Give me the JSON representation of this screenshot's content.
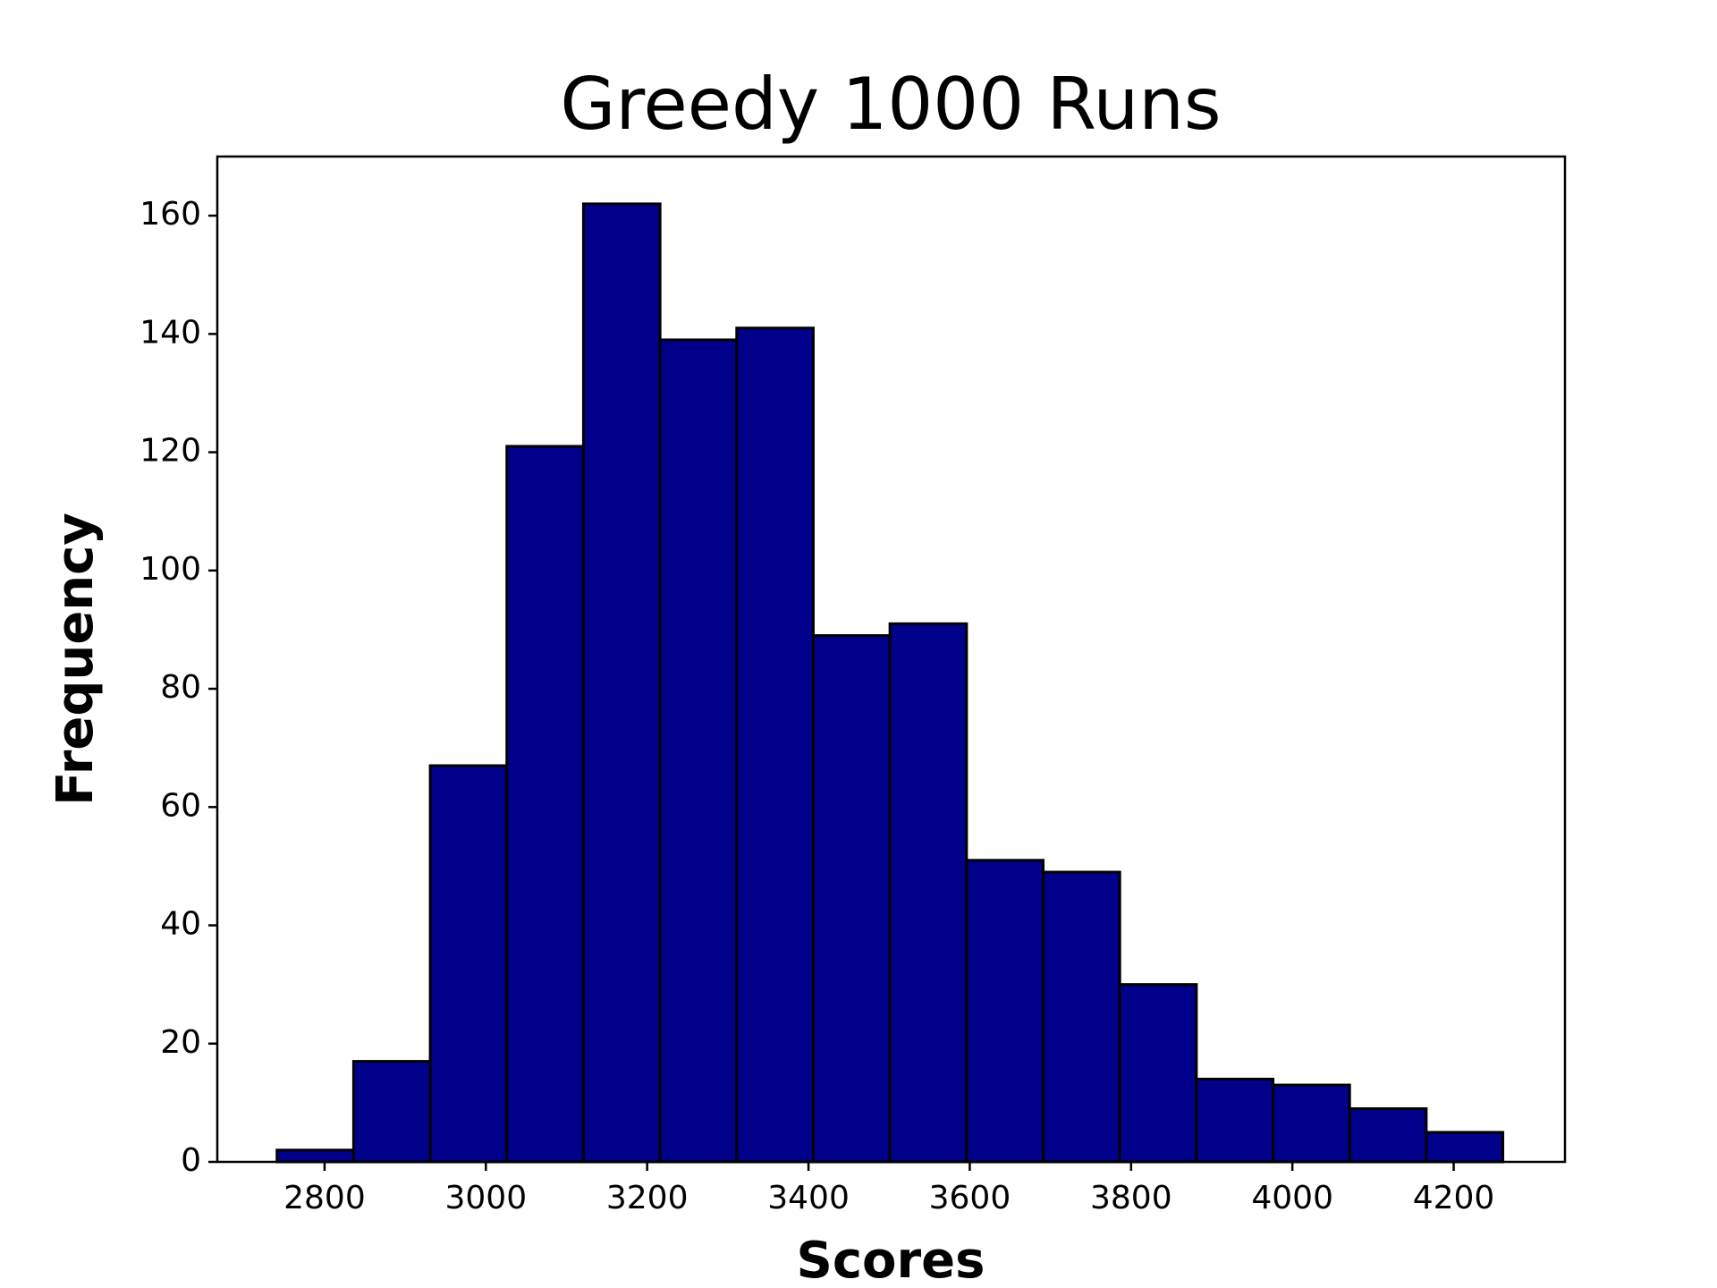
{
  "chart_data": {
    "type": "histogram",
    "title": "Greedy 1000 Runs",
    "x_label": "Scores",
    "y_label": "Frequency",
    "bins": [
      2741,
      2836,
      2931,
      3026,
      3121,
      3216,
      3311,
      3406,
      3501,
      3596,
      3691,
      3786,
      3881,
      3976,
      4071,
      4166,
      4261
    ],
    "values": [
      2,
      17,
      67,
      121,
      162,
      139,
      141,
      89,
      91,
      51,
      49,
      30,
      14,
      13,
      9,
      5
    ],
    "color": "#00008b",
    "edgecolor": "#000000",
    "xlim": [
      2667,
      4338
    ],
    "xticks": [
      2800,
      3000,
      3200,
      3400,
      3600,
      3800,
      4000,
      4200
    ],
    "ylim": [
      0,
      170
    ],
    "yticks": [
      0,
      20,
      40,
      60,
      80,
      100,
      120,
      140,
      160
    ]
  }
}
